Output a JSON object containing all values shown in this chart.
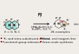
{
  "background_color": "#f0ede8",
  "bullet_points_left": [
    "Tri- and tetra-substituted alkenes",
    "Functional group tolerance"
  ],
  "bullet_points_right": [
    "Metal- and reagent-free",
    "Gram-scale synthesis"
  ],
  "bullet_color": "#cc0000",
  "reaction_conditions_1": "DMAc/AcOH (4:1)",
  "reaction_conditions_2": "Et₃NPF₆, 110 °C",
  "examples_text": "36 examples",
  "arrow_color": "#222222",
  "cyan_color": "#4ecdc4",
  "red_color": "#e05050",
  "orange_color": "#e8a020",
  "text_color": "#111111",
  "gray_color": "#555555",
  "white_color": "#ffffff"
}
